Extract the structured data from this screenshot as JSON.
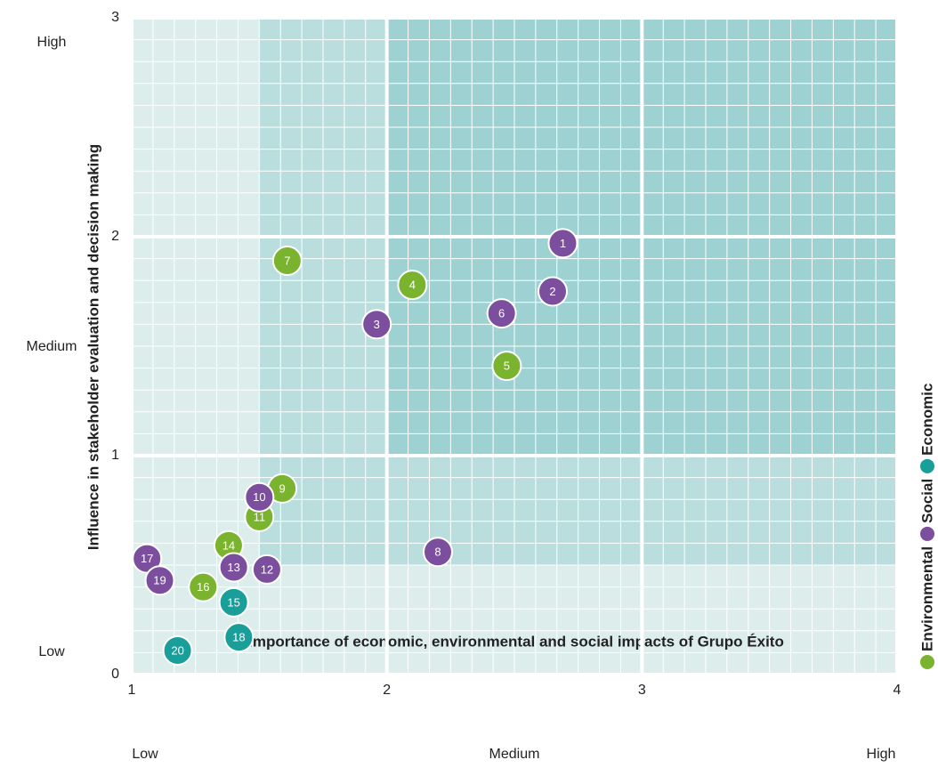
{
  "chart_data": {
    "type": "scatter",
    "xlabel": "Importance of economic, environmental and social impacts of Grupo Éxito",
    "ylabel": "Influence in stakeholder evaluation and decision making",
    "xlim": [
      1,
      4
    ],
    "ylim": [
      0,
      3
    ],
    "xticks": [
      1,
      2,
      3,
      4
    ],
    "yticks": [
      0,
      1,
      2,
      3
    ],
    "x_level_labels": [
      "Low",
      "Medium",
      "High"
    ],
    "y_level_labels": [
      "Low",
      "Medium",
      "High"
    ],
    "series": [
      {
        "name": "Environmental",
        "color": "#7ab32e",
        "labels": [
          "4",
          "5",
          "7",
          "9",
          "11",
          "14",
          "16"
        ],
        "x": [
          2.1,
          2.47,
          1.61,
          1.59,
          1.5,
          1.38,
          1.28
        ],
        "values": [
          1.78,
          1.41,
          1.89,
          0.85,
          0.72,
          0.59,
          0.4
        ]
      },
      {
        "name": "Social",
        "color": "#7b4f9d",
        "labels": [
          "1",
          "2",
          "3",
          "6",
          "8",
          "10",
          "12",
          "13",
          "17",
          "19"
        ],
        "x": [
          2.69,
          2.65,
          1.96,
          2.45,
          2.2,
          1.5,
          1.53,
          1.4,
          1.06,
          1.11
        ],
        "values": [
          1.97,
          1.75,
          1.6,
          1.65,
          0.56,
          0.81,
          0.48,
          0.49,
          0.53,
          0.43
        ]
      },
      {
        "name": "Economic",
        "color": "#1a9e9a",
        "labels": [
          "15",
          "18",
          "20"
        ],
        "x": [
          1.4,
          1.42,
          1.18
        ],
        "values": [
          0.33,
          0.17,
          0.11
        ]
      }
    ]
  }
}
